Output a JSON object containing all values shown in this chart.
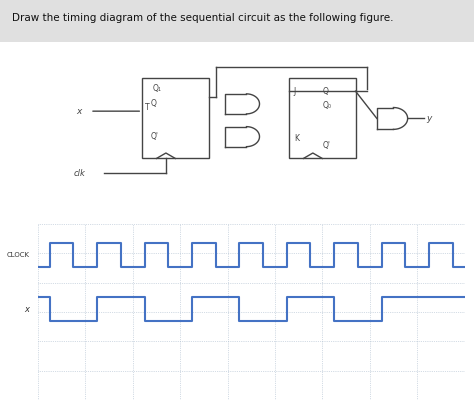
{
  "title": "Draw the timing diagram of the sequential circuit as the following figure.",
  "title_fontsize": 7.5,
  "background_color": "#ffffff",
  "signal_color": "#4472c4",
  "grid_color": "#aabbcc",
  "label_color": "#333333",
  "clock_label": "CLOCK",
  "x_label": "x",
  "total_time": 18,
  "clock_times": [
    0,
    0.5,
    0.5,
    1.5,
    1.5,
    2.5,
    2.5,
    3.5,
    3.5,
    4.5,
    4.5,
    5.5,
    5.5,
    6.5,
    6.5,
    7.5,
    7.5,
    8.5,
    8.5,
    9.5,
    9.5,
    10.5,
    10.5,
    11.5,
    11.5,
    12.5,
    12.5,
    13.5,
    13.5,
    14.5,
    14.5,
    15.5,
    15.5,
    16.5,
    16.5,
    17.5,
    17.5,
    18
  ],
  "clock_signal": [
    0,
    0,
    1,
    1,
    0,
    0,
    1,
    1,
    0,
    0,
    1,
    1,
    0,
    0,
    1,
    1,
    0,
    0,
    1,
    1,
    0,
    0,
    1,
    1,
    0,
    0,
    1,
    1,
    0,
    0,
    1,
    1,
    0,
    0,
    1,
    1,
    0,
    0
  ],
  "x_times": [
    0,
    0.5,
    0.5,
    2.5,
    2.5,
    4.5,
    4.5,
    6.5,
    6.5,
    8.5,
    8.5,
    10.5,
    10.5,
    12.5,
    12.5,
    14.5,
    14.5,
    16.5,
    16.5,
    18
  ],
  "x_signal": [
    1,
    1,
    0,
    0,
    1,
    1,
    0,
    0,
    1,
    1,
    0,
    0,
    1,
    1,
    0,
    0,
    1,
    1,
    1,
    1
  ],
  "num_grid_rows": 5,
  "num_grid_cols": 9
}
